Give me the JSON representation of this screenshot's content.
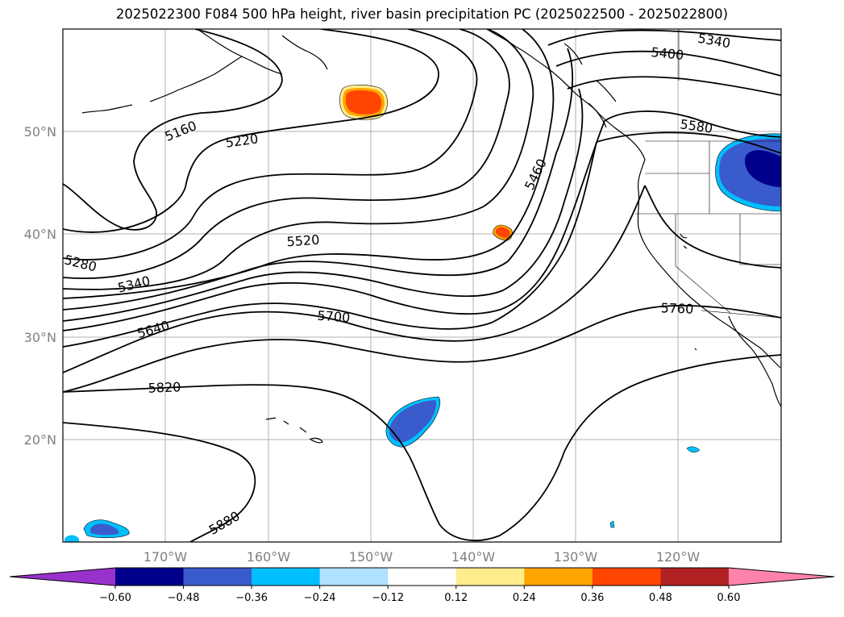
{
  "title": "2025022300 F084 500 hPa height, river basin precipitation PC (2025022500 - 2025022800)",
  "map": {
    "projection": "cylindrical",
    "lon_range": [
      -180,
      -110
    ],
    "lat_range": [
      10,
      60
    ],
    "lat_labels": [
      "50°N",
      "40°N",
      "30°N",
      "20°N"
    ],
    "lon_labels": [
      "170°W",
      "160°W",
      "150°W",
      "140°W",
      "130°W",
      "120°W"
    ],
    "contour_labels": [
      "5160",
      "5220",
      "5280",
      "5340",
      "5400",
      "5340",
      "5460",
      "5520",
      "5580",
      "5640",
      "5700",
      "5760",
      "5820",
      "5880"
    ]
  },
  "colorbar": {
    "ticks": [
      "−0.60",
      "−0.48",
      "−0.36",
      "−0.24",
      "−0.12",
      "0.12",
      "0.24",
      "0.36",
      "0.48",
      "0.60"
    ],
    "colors": [
      "#9932cc",
      "#00008b",
      "#3a5bcc",
      "#00bfff",
      "#b0e2ff",
      "#ffffff",
      "#ffec8b",
      "#ffa500",
      "#ff4500",
      "#b22222",
      "#ff82ab"
    ]
  }
}
